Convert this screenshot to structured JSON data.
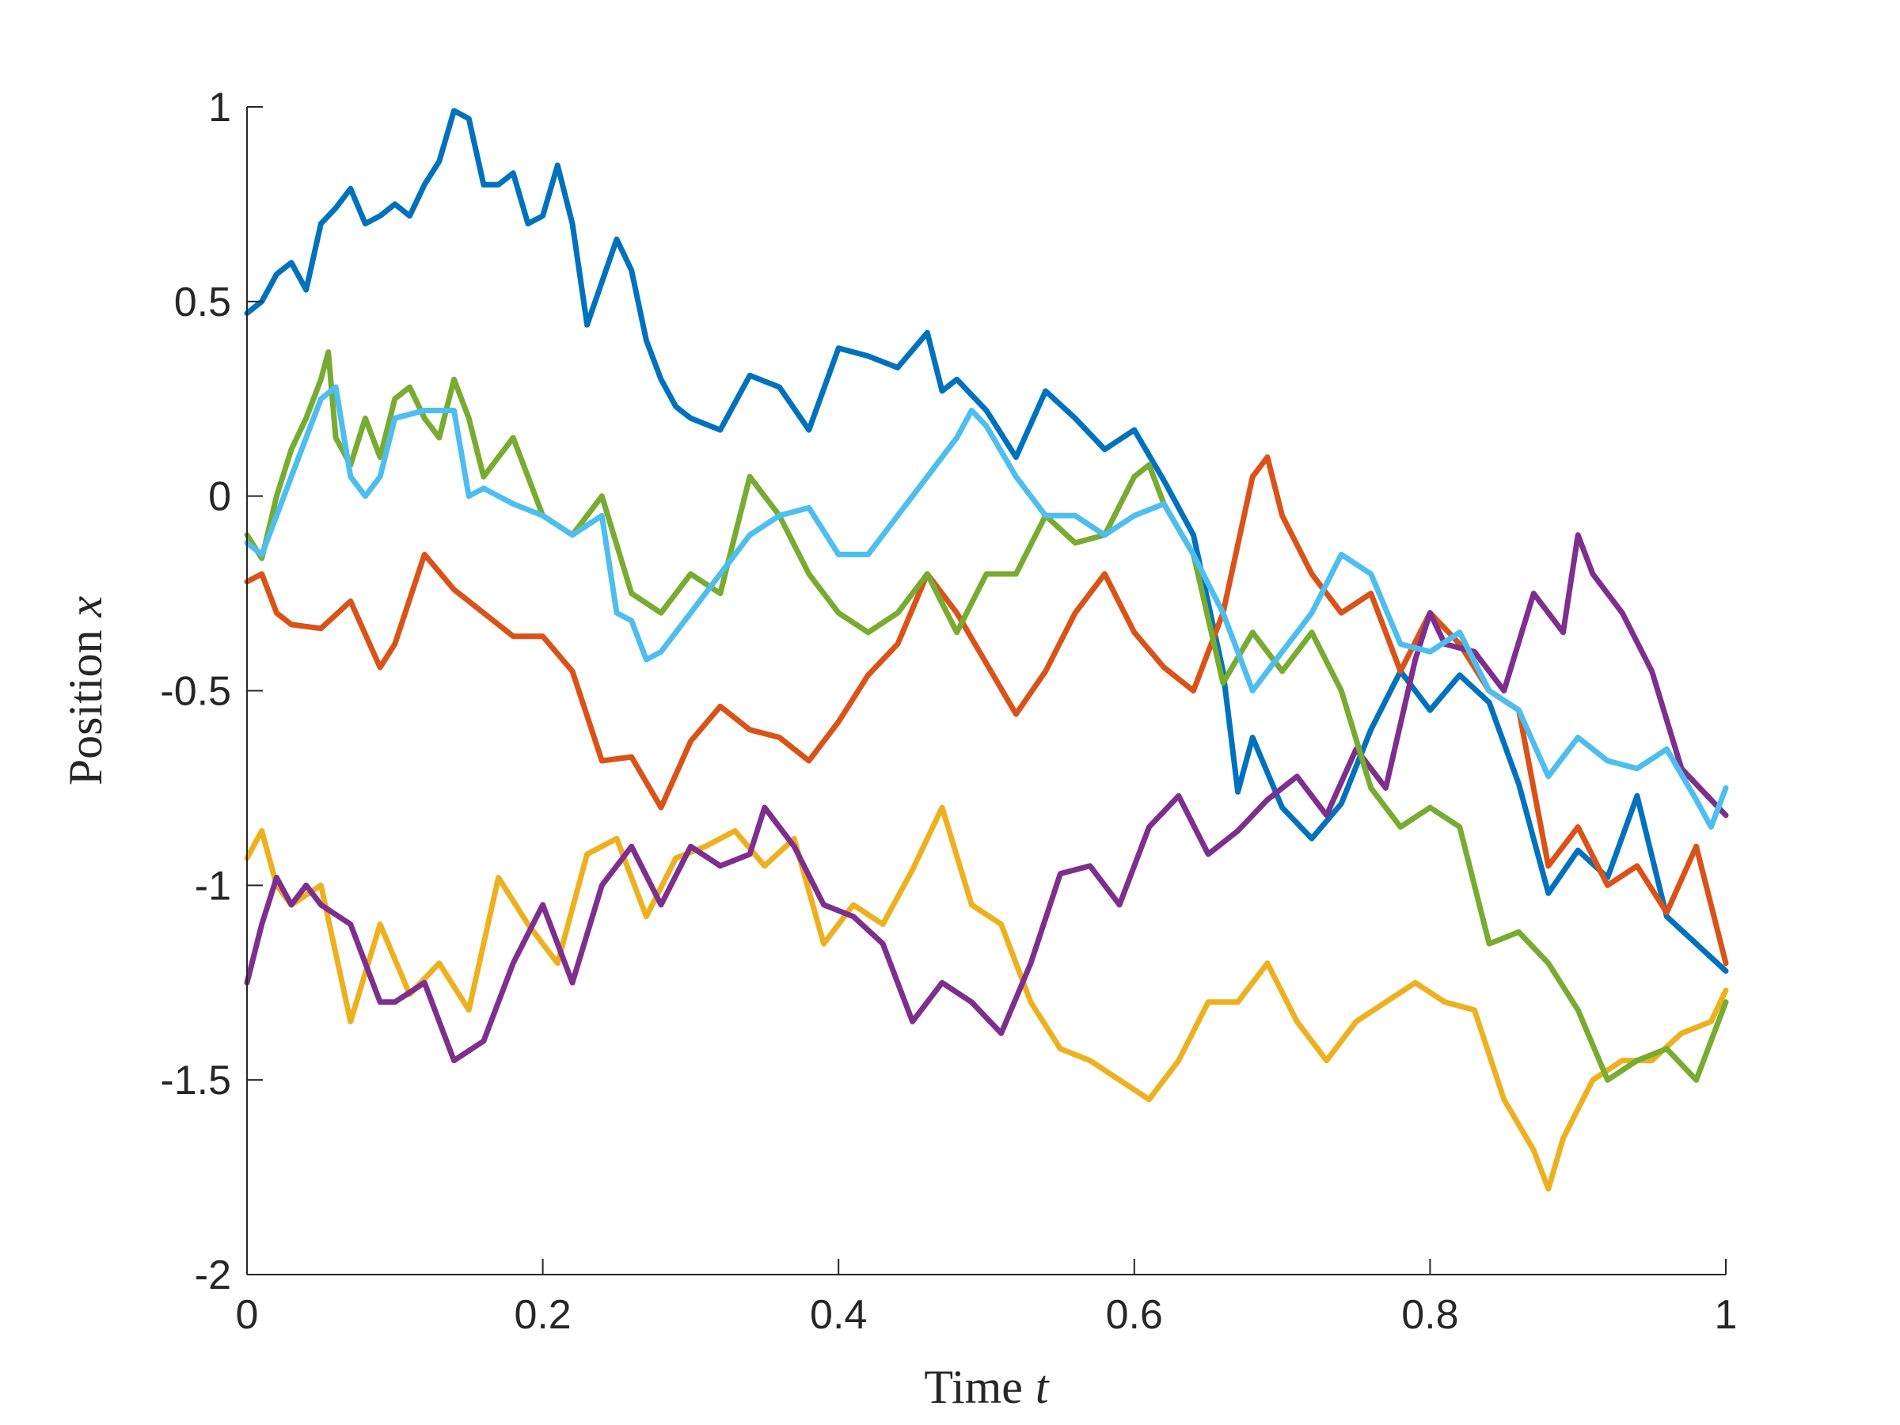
{
  "chart_data": {
    "type": "line",
    "xlabel": "Time",
    "xlabel_var": "t",
    "ylabel": "Position",
    "ylabel_var": "x",
    "xlim": [
      0,
      1
    ],
    "ylim": [
      -2,
      1
    ],
    "xticks": [
      0,
      0.2,
      0.4,
      0.6,
      0.8,
      1
    ],
    "xtick_labels": [
      "0",
      "0.2",
      "0.4",
      "0.6",
      "0.8",
      "1"
    ],
    "yticks": [
      1,
      0.5,
      0,
      -0.5,
      -1,
      -1.5,
      -2
    ],
    "ytick_labels": [
      "1",
      "0.5",
      "0",
      "-0.5",
      "-1",
      "-1.5",
      "-2"
    ],
    "grid": false,
    "series": [
      {
        "color": "#0072BD",
        "x": [
          0,
          0.01,
          0.02,
          0.03,
          0.04,
          0.05,
          0.06,
          0.07,
          0.08,
          0.09,
          0.1,
          0.11,
          0.12,
          0.13,
          0.14,
          0.15,
          0.16,
          0.17,
          0.18,
          0.19,
          0.2,
          0.21,
          0.22,
          0.23,
          0.24,
          0.25,
          0.26,
          0.27,
          0.28,
          0.29,
          0.3,
          0.32,
          0.34,
          0.36,
          0.38,
          0.4,
          0.42,
          0.44,
          0.46,
          0.47,
          0.48,
          0.5,
          0.52,
          0.54,
          0.56,
          0.58,
          0.6,
          0.62,
          0.64,
          0.66,
          0.67,
          0.68,
          0.7,
          0.72,
          0.74,
          0.76,
          0.78,
          0.8,
          0.82,
          0.84,
          0.86,
          0.88,
          0.9,
          0.92,
          0.94,
          0.96,
          0.98,
          1.0
        ],
        "y": [
          0.47,
          0.5,
          0.57,
          0.6,
          0.53,
          0.7,
          0.74,
          0.79,
          0.7,
          0.72,
          0.75,
          0.72,
          0.8,
          0.86,
          0.99,
          0.97,
          0.8,
          0.8,
          0.83,
          0.7,
          0.72,
          0.85,
          0.7,
          0.44,
          0.55,
          0.66,
          0.58,
          0.4,
          0.3,
          0.23,
          0.2,
          0.17,
          0.31,
          0.28,
          0.17,
          0.38,
          0.36,
          0.33,
          0.42,
          0.27,
          0.3,
          0.22,
          0.1,
          0.27,
          0.2,
          0.12,
          0.17,
          0.04,
          -0.1,
          -0.45,
          -0.76,
          -0.62,
          -0.8,
          -0.88,
          -0.79,
          -0.6,
          -0.45,
          -0.55,
          -0.46,
          -0.53,
          -0.74,
          -1.02,
          -0.91,
          -0.98,
          -0.77,
          -1.08,
          -1.15,
          -1.22
        ]
      },
      {
        "color": "#D95319",
        "x": [
          0,
          0.01,
          0.02,
          0.03,
          0.05,
          0.07,
          0.09,
          0.1,
          0.12,
          0.14,
          0.16,
          0.18,
          0.2,
          0.22,
          0.24,
          0.26,
          0.28,
          0.3,
          0.32,
          0.34,
          0.36,
          0.38,
          0.4,
          0.42,
          0.44,
          0.46,
          0.48,
          0.5,
          0.52,
          0.54,
          0.56,
          0.58,
          0.6,
          0.62,
          0.64,
          0.66,
          0.68,
          0.69,
          0.7,
          0.72,
          0.74,
          0.76,
          0.78,
          0.8,
          0.82,
          0.84,
          0.86,
          0.88,
          0.9,
          0.92,
          0.94,
          0.96,
          0.98,
          1.0
        ],
        "y": [
          -0.22,
          -0.2,
          -0.3,
          -0.33,
          -0.34,
          -0.27,
          -0.44,
          -0.38,
          -0.15,
          -0.24,
          -0.3,
          -0.36,
          -0.36,
          -0.45,
          -0.68,
          -0.67,
          -0.8,
          -0.63,
          -0.54,
          -0.6,
          -0.62,
          -0.68,
          -0.58,
          -0.46,
          -0.38,
          -0.2,
          -0.3,
          -0.43,
          -0.56,
          -0.45,
          -0.3,
          -0.2,
          -0.35,
          -0.44,
          -0.5,
          -0.3,
          0.05,
          0.1,
          -0.05,
          -0.2,
          -0.3,
          -0.25,
          -0.45,
          -0.3,
          -0.38,
          -0.5,
          -0.55,
          -0.95,
          -0.85,
          -1.0,
          -0.95,
          -1.07,
          -0.9,
          -1.2
        ]
      },
      {
        "color": "#EDB120",
        "x": [
          0,
          0.01,
          0.02,
          0.03,
          0.05,
          0.07,
          0.09,
          0.11,
          0.13,
          0.15,
          0.17,
          0.19,
          0.21,
          0.23,
          0.25,
          0.27,
          0.29,
          0.31,
          0.33,
          0.35,
          0.37,
          0.39,
          0.41,
          0.43,
          0.45,
          0.47,
          0.49,
          0.51,
          0.53,
          0.55,
          0.57,
          0.59,
          0.61,
          0.63,
          0.65,
          0.67,
          0.69,
          0.71,
          0.73,
          0.75,
          0.77,
          0.79,
          0.81,
          0.83,
          0.85,
          0.87,
          0.88,
          0.89,
          0.91,
          0.93,
          0.95,
          0.97,
          0.99,
          1.0
        ],
        "y": [
          -0.93,
          -0.86,
          -1.0,
          -1.05,
          -1.0,
          -1.35,
          -1.1,
          -1.28,
          -1.2,
          -1.32,
          -0.98,
          -1.1,
          -1.2,
          -0.92,
          -0.88,
          -1.08,
          -0.93,
          -0.9,
          -0.86,
          -0.95,
          -0.88,
          -1.15,
          -1.05,
          -1.1,
          -0.96,
          -0.8,
          -1.05,
          -1.1,
          -1.3,
          -1.42,
          -1.45,
          -1.5,
          -1.55,
          -1.45,
          -1.3,
          -1.3,
          -1.2,
          -1.35,
          -1.45,
          -1.35,
          -1.3,
          -1.25,
          -1.3,
          -1.32,
          -1.55,
          -1.68,
          -1.78,
          -1.65,
          -1.5,
          -1.45,
          -1.45,
          -1.38,
          -1.35,
          -1.27
        ]
      },
      {
        "color": "#7E2F8E",
        "x": [
          0,
          0.01,
          0.02,
          0.03,
          0.04,
          0.05,
          0.07,
          0.09,
          0.1,
          0.12,
          0.14,
          0.16,
          0.18,
          0.2,
          0.22,
          0.24,
          0.26,
          0.28,
          0.3,
          0.32,
          0.34,
          0.35,
          0.37,
          0.39,
          0.41,
          0.43,
          0.45,
          0.47,
          0.49,
          0.51,
          0.53,
          0.55,
          0.57,
          0.59,
          0.61,
          0.63,
          0.65,
          0.67,
          0.69,
          0.71,
          0.73,
          0.75,
          0.77,
          0.79,
          0.8,
          0.81,
          0.83,
          0.85,
          0.87,
          0.89,
          0.9,
          0.91,
          0.93,
          0.95,
          0.97,
          0.99,
          1.0
        ],
        "y": [
          -1.25,
          -1.1,
          -0.98,
          -1.05,
          -1.0,
          -1.05,
          -1.1,
          -1.3,
          -1.3,
          -1.25,
          -1.45,
          -1.4,
          -1.2,
          -1.05,
          -1.25,
          -1.0,
          -0.9,
          -1.05,
          -0.9,
          -0.95,
          -0.92,
          -0.8,
          -0.9,
          -1.05,
          -1.08,
          -1.15,
          -1.35,
          -1.25,
          -1.3,
          -1.38,
          -1.2,
          -0.97,
          -0.95,
          -1.05,
          -0.85,
          -0.77,
          -0.92,
          -0.86,
          -0.78,
          -0.72,
          -0.82,
          -0.65,
          -0.75,
          -0.42,
          -0.3,
          -0.38,
          -0.4,
          -0.5,
          -0.25,
          -0.35,
          -0.1,
          -0.2,
          -0.3,
          -0.45,
          -0.7,
          -0.78,
          -0.82
        ]
      },
      {
        "color": "#77AC30",
        "x": [
          0,
          0.01,
          0.02,
          0.03,
          0.04,
          0.05,
          0.055,
          0.06,
          0.07,
          0.08,
          0.09,
          0.1,
          0.11,
          0.12,
          0.13,
          0.14,
          0.15,
          0.16,
          0.18,
          0.2,
          0.22,
          0.24,
          0.26,
          0.28,
          0.3,
          0.32,
          0.34,
          0.36,
          0.38,
          0.4,
          0.42,
          0.44,
          0.46,
          0.48,
          0.5,
          0.52,
          0.54,
          0.56,
          0.58,
          0.6,
          0.61,
          0.62,
          0.64,
          0.66,
          0.68,
          0.7,
          0.72,
          0.74,
          0.76,
          0.78,
          0.8,
          0.82,
          0.84,
          0.86,
          0.88,
          0.9,
          0.92,
          0.94,
          0.96,
          0.98,
          1.0
        ],
        "y": [
          -0.1,
          -0.16,
          0.0,
          0.12,
          0.2,
          0.3,
          0.37,
          0.15,
          0.08,
          0.2,
          0.1,
          0.25,
          0.28,
          0.2,
          0.15,
          0.3,
          0.2,
          0.05,
          0.15,
          -0.05,
          -0.1,
          0.0,
          -0.25,
          -0.3,
          -0.2,
          -0.25,
          0.05,
          -0.05,
          -0.2,
          -0.3,
          -0.35,
          -0.3,
          -0.2,
          -0.35,
          -0.2,
          -0.2,
          -0.05,
          -0.12,
          -0.1,
          0.05,
          0.08,
          -0.02,
          -0.15,
          -0.48,
          -0.35,
          -0.45,
          -0.35,
          -0.5,
          -0.75,
          -0.85,
          -0.8,
          -0.85,
          -1.15,
          -1.12,
          -1.2,
          -1.32,
          -1.5,
          -1.45,
          -1.42,
          -1.5,
          -1.3
        ]
      },
      {
        "color": "#4DBEEE",
        "x": [
          0,
          0.01,
          0.02,
          0.03,
          0.04,
          0.05,
          0.06,
          0.07,
          0.08,
          0.09,
          0.1,
          0.12,
          0.14,
          0.15,
          0.16,
          0.18,
          0.2,
          0.22,
          0.24,
          0.25,
          0.26,
          0.27,
          0.28,
          0.3,
          0.32,
          0.34,
          0.36,
          0.38,
          0.4,
          0.42,
          0.44,
          0.46,
          0.48,
          0.49,
          0.5,
          0.52,
          0.54,
          0.56,
          0.58,
          0.6,
          0.62,
          0.64,
          0.66,
          0.68,
          0.7,
          0.72,
          0.74,
          0.76,
          0.78,
          0.8,
          0.82,
          0.84,
          0.86,
          0.88,
          0.9,
          0.92,
          0.94,
          0.96,
          0.98,
          0.99,
          1.0
        ],
        "y": [
          -0.12,
          -0.15,
          -0.05,
          0.05,
          0.15,
          0.25,
          0.28,
          0.05,
          0.0,
          0.05,
          0.2,
          0.22,
          0.22,
          0.0,
          0.02,
          -0.02,
          -0.05,
          -0.1,
          -0.05,
          -0.3,
          -0.32,
          -0.42,
          -0.4,
          -0.3,
          -0.2,
          -0.1,
          -0.05,
          -0.03,
          -0.15,
          -0.15,
          -0.05,
          0.05,
          0.15,
          0.22,
          0.18,
          0.05,
          -0.05,
          -0.05,
          -0.1,
          -0.05,
          -0.02,
          -0.15,
          -0.3,
          -0.5,
          -0.4,
          -0.3,
          -0.15,
          -0.2,
          -0.38,
          -0.4,
          -0.35,
          -0.5,
          -0.55,
          -0.72,
          -0.62,
          -0.68,
          -0.7,
          -0.65,
          -0.78,
          -0.85,
          -0.75
        ]
      }
    ]
  }
}
